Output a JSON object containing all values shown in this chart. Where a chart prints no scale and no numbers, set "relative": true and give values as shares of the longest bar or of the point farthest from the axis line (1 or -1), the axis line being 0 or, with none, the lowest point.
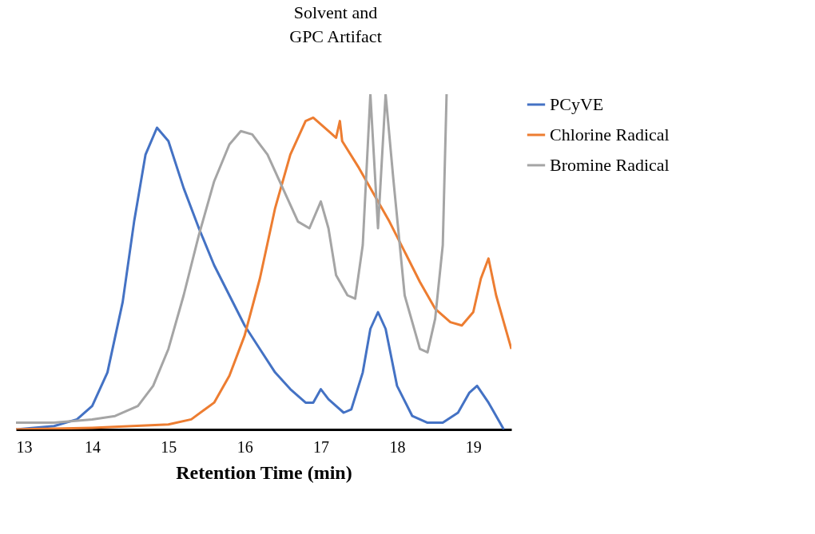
{
  "chart_data": {
    "type": "line",
    "relative": true,
    "xlabel": "Retention Time (min)",
    "xlim": [
      13,
      19.5
    ],
    "xticks": [
      13,
      14,
      15,
      16,
      17,
      18,
      19
    ],
    "legend": "right",
    "grid": false,
    "marker": "none",
    "line_style": "solid",
    "annotations": [
      "Solvent and\nGPC Artifact"
    ],
    "series": [
      {
        "name": "PCyVE",
        "color": "#4472c4",
        "x": [
          13.0,
          13.5,
          13.8,
          14.0,
          14.2,
          14.4,
          14.55,
          14.7,
          14.85,
          15.0,
          15.2,
          15.4,
          15.6,
          15.8,
          16.0,
          16.2,
          16.4,
          16.6,
          16.8,
          16.9,
          17.0,
          17.1,
          17.3,
          17.4,
          17.55,
          17.65,
          17.75,
          17.85,
          18.0,
          18.2,
          18.4,
          18.6,
          18.8,
          18.95,
          19.05,
          19.2,
          19.35,
          19.4
        ],
        "values": [
          0.0,
          0.01,
          0.03,
          0.07,
          0.17,
          0.38,
          0.62,
          0.82,
          0.9,
          0.86,
          0.72,
          0.6,
          0.49,
          0.4,
          0.31,
          0.24,
          0.17,
          0.12,
          0.08,
          0.08,
          0.12,
          0.09,
          0.05,
          0.06,
          0.17,
          0.3,
          0.35,
          0.3,
          0.13,
          0.04,
          0.02,
          0.02,
          0.05,
          0.11,
          0.13,
          0.08,
          0.02,
          0.0
        ]
      },
      {
        "name": "Chlorine Radical",
        "color": "#ed7d31",
        "x": [
          13.0,
          14.0,
          15.0,
          15.3,
          15.6,
          15.8,
          16.0,
          16.2,
          16.4,
          16.6,
          16.8,
          16.9,
          17.1,
          17.2,
          17.25,
          17.28,
          17.5,
          17.7,
          17.9,
          18.1,
          18.3,
          18.5,
          18.7,
          18.85,
          19.0,
          19.1,
          19.2,
          19.3,
          19.5
        ],
        "values": [
          0.0,
          0.005,
          0.015,
          0.03,
          0.08,
          0.16,
          0.28,
          0.45,
          0.66,
          0.82,
          0.92,
          0.93,
          0.89,
          0.87,
          0.92,
          0.86,
          0.78,
          0.7,
          0.62,
          0.53,
          0.44,
          0.36,
          0.32,
          0.31,
          0.35,
          0.45,
          0.51,
          0.4,
          0.24
        ]
      },
      {
        "name": "Bromine Radical",
        "color": "#a5a5a5",
        "x": [
          13.0,
          13.5,
          14.0,
          14.3,
          14.6,
          14.8,
          15.0,
          15.2,
          15.4,
          15.6,
          15.8,
          15.95,
          16.1,
          16.3,
          16.5,
          16.7,
          16.85,
          17.0,
          17.1,
          17.2,
          17.35,
          17.45,
          17.55,
          17.65,
          17.75,
          17.85,
          17.95,
          18.1,
          18.3,
          18.4,
          18.5,
          18.6,
          18.65
        ],
        "values": [
          0.02,
          0.02,
          0.03,
          0.04,
          0.07,
          0.13,
          0.24,
          0.4,
          0.58,
          0.74,
          0.85,
          0.89,
          0.88,
          0.82,
          0.72,
          0.62,
          0.6,
          0.68,
          0.6,
          0.46,
          0.4,
          0.39,
          0.55,
          1.0,
          0.6,
          1.0,
          0.75,
          0.4,
          0.24,
          0.23,
          0.33,
          0.55,
          1.0
        ]
      }
    ]
  }
}
